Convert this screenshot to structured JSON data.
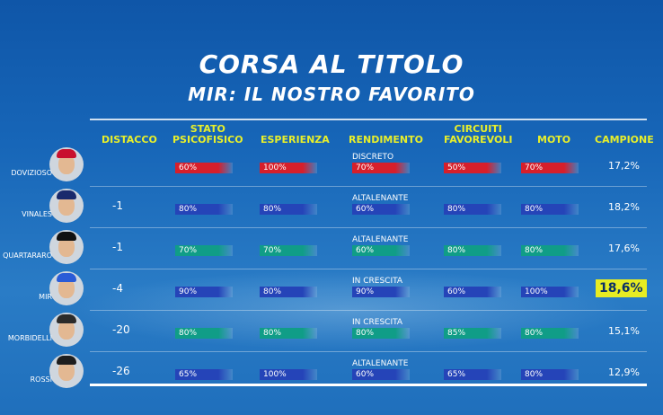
{
  "title": "CORSA AL TITOLO",
  "subtitle": "MIR: IL NOSTRO FAVORITO",
  "headers": {
    "distacco": "DISTACCO",
    "stato": "STATO\nPSICOFISICO",
    "esperienza": "ESPERIENZA",
    "rendimento": "RENDIMENTO",
    "circuiti": "CIRCUITI\nFAVOREVOLI",
    "moto": "MOTO",
    "campione": "CAMPIONE"
  },
  "colors": {
    "red": "#d61f2b",
    "blue": "#2544b8",
    "green": "#109d87",
    "highlight": "#e7ec22"
  },
  "riders": [
    {
      "name": "DOVIZIOSO",
      "distacco": "",
      "helmet": "#c8102e",
      "stato": "60%",
      "esperienza": "100%",
      "rend_note": "DISCRETO",
      "rendimento": "70%",
      "circuiti": "50%",
      "moto": "70%",
      "campione": "17,2%",
      "color": "red"
    },
    {
      "name": "VINALES",
      "distacco": "-1",
      "helmet": "#1a2a6c",
      "stato": "80%",
      "esperienza": "80%",
      "rend_note": "ALTALENANTE",
      "rendimento": "60%",
      "circuiti": "80%",
      "moto": "80%",
      "campione": "18,2%",
      "color": "blue"
    },
    {
      "name": "QUARTARARO",
      "distacco": "-1",
      "helmet": "#111111",
      "stato": "70%",
      "esperienza": "70%",
      "rend_note": "ALTALENANTE",
      "rendimento": "60%",
      "circuiti": "80%",
      "moto": "80%",
      "campione": "17,6%",
      "color": "green"
    },
    {
      "name": "MIR",
      "distacco": "-4",
      "helmet": "#2a5bd7",
      "stato": "90%",
      "esperienza": "80%",
      "rend_note": "IN CRESCITA",
      "rendimento": "90%",
      "circuiti": "60%",
      "moto": "100%",
      "campione": "18,6%",
      "color": "blue"
    },
    {
      "name": "MORBIDELLI",
      "distacco": "-20",
      "helmet": "#2b2b2b",
      "stato": "80%",
      "esperienza": "80%",
      "rend_note": "IN CRESCITA",
      "rendimento": "80%",
      "circuiti": "85%",
      "moto": "80%",
      "campione": "15,1%",
      "color": "green"
    },
    {
      "name": "ROSSI",
      "distacco": "-26",
      "helmet": "#1e1e1e",
      "stato": "65%",
      "esperienza": "100%",
      "rend_note": "ALTALENANTE",
      "rendimento": "60%",
      "circuiti": "65%",
      "moto": "80%",
      "campione": "12,9%",
      "color": "blue"
    }
  ]
}
